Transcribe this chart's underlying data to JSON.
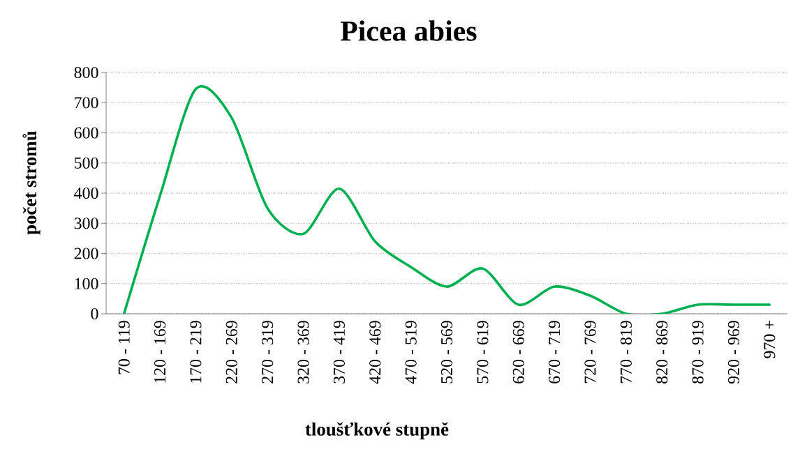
{
  "chart_data": {
    "type": "line",
    "title": "Picea abies",
    "xlabel": "tloušťkové stupně",
    "ylabel": "počet stromů",
    "categories": [
      "70 - 119",
      "120 - 169",
      "170 - 219",
      "220 - 269",
      "270 - 319",
      "320 - 369",
      "370 - 419",
      "420 - 469",
      "470 - 519",
      "520 - 569",
      "570 - 619",
      "620 - 669",
      "670 - 719",
      "720 - 769",
      "770 - 819",
      "820 - 869",
      "870 - 919",
      "920 - 969",
      "970 +"
    ],
    "series": [
      {
        "color": "#00b050",
        "values": [
          0,
          390,
          745,
          650,
          350,
          265,
          415,
          240,
          155,
          90,
          150,
          30,
          90,
          60,
          0,
          0,
          30,
          30,
          30
        ]
      }
    ],
    "ylim": [
      0,
      800
    ],
    "yticks": [
      0,
      100,
      200,
      300,
      400,
      500,
      600,
      700,
      800
    ],
    "grid": "y",
    "marker": "none",
    "line_style": "solid"
  }
}
